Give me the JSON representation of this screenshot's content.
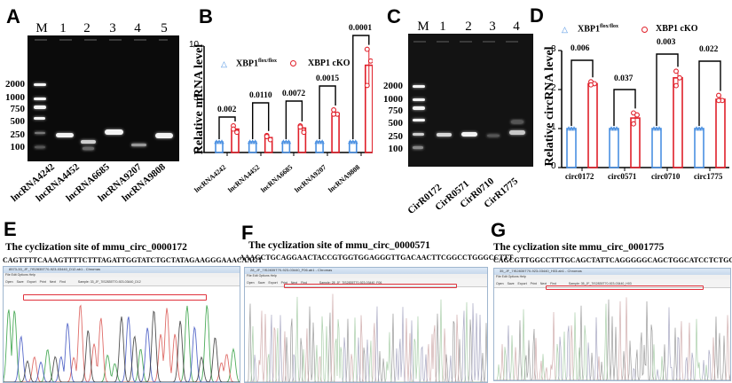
{
  "panels": {
    "A": {
      "label": "A",
      "lane_headers": [
        "M",
        "1",
        "2",
        "3",
        "4",
        "5"
      ],
      "ladder_labels": [
        "2000",
        "1000",
        "750",
        "500",
        "250",
        "100"
      ],
      "sample_labels": [
        "lncRNA4242",
        "lncRNA4452",
        "lncRNA6685",
        "lncRNA9207",
        "lncRNA9808"
      ]
    },
    "B": {
      "label": "B",
      "ylabel": "Relative mRNA level",
      "legend": {
        "ctrl_base": "XBP1",
        "ctrl_sup": "flox/flox",
        "cko": "XBP1 cKO"
      },
      "yticks": [
        "0",
        "5",
        "10"
      ],
      "categories": [
        "lncRNA4242",
        "lncRNA4452",
        "lncRNA6685",
        "lncRNA9207",
        "lncRNA9808"
      ],
      "pvalues": [
        "0.002",
        "0.0110",
        "0.0072",
        "0.0015",
        "0.0001"
      ]
    },
    "C": {
      "label": "C",
      "lane_headers": [
        "M",
        "1",
        "2",
        "3",
        "4"
      ],
      "ladder_labels": [
        "2000",
        "1000",
        "750",
        "500",
        "250",
        "100"
      ],
      "sample_labels": [
        "CirR0172",
        "CirR0571",
        "CirR0710",
        "CirR1775"
      ]
    },
    "D": {
      "label": "D",
      "ylabel": "Relative circRNA level",
      "legend": {
        "ctrl_base": "XBP1",
        "ctrl_sup": "flox/flox",
        "cko": "XBP1 cKO"
      },
      "yticks": [
        "0",
        "1",
        "2",
        "3"
      ],
      "categories": [
        "circ0172",
        "circ0571",
        "circ0710",
        "circ1775"
      ],
      "pvalues": [
        "0.006",
        "0.037",
        "0.003",
        "0.022"
      ]
    },
    "E": {
      "label": "E",
      "title": "The cyclization site of   mmu_circ_0000172",
      "sequence": "CAGTTTTCAAAGTTTTCTTTAGATTGGTATCTGCTATAGAAGGGAAACAAGT",
      "window_title": "8573-33_JF_7IS2835T70-923-03440_D12.ab1 - Chromas",
      "menu": "File  Edit  Options  Help",
      "tools": [
        "Open",
        "Save",
        "Export",
        "Print",
        "Next",
        "Find"
      ],
      "sample_text": "Sample: 33_JF_7IS2835T70-923-03440_D12"
    },
    "F": {
      "label": "F",
      "title": "The cyclization site of mmu_circ_0000571",
      "sequence": "AAAGCTGCAGGAACTACCGTGGTGGAGGGTTGACAACTTCGGCCTGGGCCTTT",
      "window_title": "28_JF_7IS2835T70-923-03440_F06.ab1 - Chromas",
      "menu": "File  Edit  Options  Help",
      "tools": [
        "Open",
        "Save",
        "Export",
        "Print",
        "Next",
        "Find"
      ],
      "sample_text": "Sample: 28_JF_7IS2835T70-923-03440_F06"
    },
    "G": {
      "label": "G",
      "title": "The cyclization site mmu_circ_0001775",
      "sequence": "CAGCGTTGGCCTTTGCAGCTATTCAGGGGGCAGCTGGCATCCTCTGCTACGT",
      "window_title": "35_JF_7IS2835T70-923-03440_H03.ab1 - Chromas",
      "menu": "File  Edit  Options  Help",
      "tools": [
        "Open",
        "Save",
        "Export",
        "Print",
        "Next",
        "Find"
      ],
      "sample_text": "Sample: 35_JF_7IS2835T70-923-03440_H03"
    }
  },
  "colors": {
    "control": "#4a90e2",
    "cko": "#e0202a",
    "highlight_box": "#e0323c",
    "gel_bg": "#0b0b0b"
  },
  "chart_data": [
    {
      "type": "bar",
      "panel": "B",
      "title": "",
      "xlabel": "",
      "ylabel": "Relative mRNA level",
      "ylim": [
        0,
        10
      ],
      "yticks": [
        0,
        5,
        10
      ],
      "grid": false,
      "legend_position": "top-left inside",
      "categories": [
        "lncRNA4242",
        "lncRNA4452",
        "lncRNA6685",
        "lncRNA9207",
        "lncRNA9808"
      ],
      "series": [
        {
          "name": "XBP1 flox/flox",
          "values": [
            1,
            1,
            1,
            1,
            1
          ],
          "points": [
            [
              1,
              1,
              1
            ],
            [
              1,
              1,
              1
            ],
            [
              1,
              1,
              1
            ],
            [
              1,
              1,
              1
            ],
            [
              1,
              1,
              1
            ]
          ]
        },
        {
          "name": "XBP1 cKO",
          "values": [
            2.2,
            1.4,
            2.3,
            3.7,
            8.2
          ],
          "points": [
            [
              2.5,
              1.9,
              2.2
            ],
            [
              1.6,
              1.2,
              1.5
            ],
            [
              2.5,
              1.9,
              2.4
            ],
            [
              4.0,
              3.6,
              3.6
            ],
            [
              9.7,
              8.6,
              6.3
            ]
          ]
        }
      ],
      "annotations": [
        "0.002",
        "0.0110",
        "0.0072",
        "0.0015",
        "0.0001"
      ]
    },
    {
      "type": "bar",
      "panel": "D",
      "title": "",
      "xlabel": "",
      "ylabel": "Relative circRNA level",
      "ylim": [
        0,
        3
      ],
      "yticks": [
        0,
        1,
        2,
        3
      ],
      "grid": false,
      "legend_position": "top",
      "categories": [
        "circ0172",
        "circ0571",
        "circ0710",
        "circ1775"
      ],
      "series": [
        {
          "name": "XBP1 flox/flox",
          "values": [
            1,
            1,
            1,
            1
          ],
          "points": [
            [
              1,
              1,
              1
            ],
            [
              1,
              1,
              1
            ],
            [
              1,
              1,
              1
            ],
            [
              1,
              1,
              1
            ]
          ]
        },
        {
          "name": "XBP1 cKO",
          "values": [
            2.15,
            1.27,
            2.3,
            1.75
          ],
          "points": [
            [
              2.2,
              2.15,
              2.12
            ],
            [
              1.4,
              1.35,
              1.12
            ],
            [
              2.47,
              2.3,
              2.1
            ],
            [
              1.85,
              1.72,
              1.72
            ]
          ]
        }
      ],
      "annotations": [
        "0.006",
        "0.037",
        "0.003",
        "0.022"
      ]
    }
  ]
}
